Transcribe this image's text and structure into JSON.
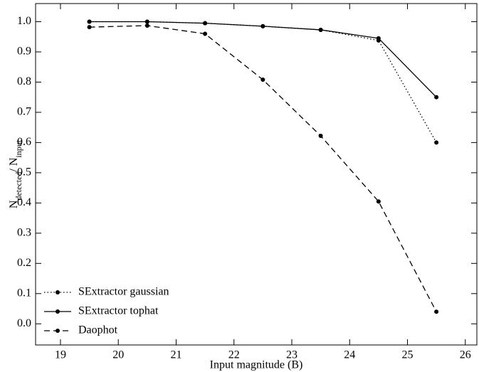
{
  "chart_data": {
    "type": "line",
    "xlabel": "Input magnitude (B)",
    "ylabel": [
      "N",
      "detected",
      "/ N",
      "input"
    ],
    "x": [
      19.5,
      20.5,
      21.5,
      22.5,
      23.5,
      24.5,
      25.5
    ],
    "series": [
      {
        "name": "SExtractor gaussian",
        "color": "#000000",
        "dash": "dotted",
        "values": [
          1.0,
          1.0,
          0.995,
          0.985,
          0.973,
          0.938,
          0.6
        ]
      },
      {
        "name": "SExtractor tophat",
        "color": "#000000",
        "dash": "solid",
        "values": [
          1.0,
          1.0,
          0.995,
          0.985,
          0.973,
          0.945,
          0.75
        ]
      },
      {
        "name": "Daophot",
        "color": "#000000",
        "dash": "dashed",
        "values": [
          0.982,
          0.987,
          0.96,
          0.808,
          0.622,
          0.405,
          0.04
        ]
      }
    ],
    "xlim": [
      18.57,
      26.2
    ],
    "ylim": [
      -0.07,
      1.06
    ],
    "xticks": [
      19,
      20,
      21,
      22,
      23,
      24,
      25,
      26
    ],
    "yticks": [
      {
        "value": 0,
        "label": "0.0"
      },
      0.1,
      0.2,
      0.3,
      0.4,
      0.5,
      0.6,
      0.7,
      0.8,
      0.9,
      {
        "value": 1,
        "label": "1.0"
      }
    ],
    "legend": "lower left",
    "grid": false
  }
}
